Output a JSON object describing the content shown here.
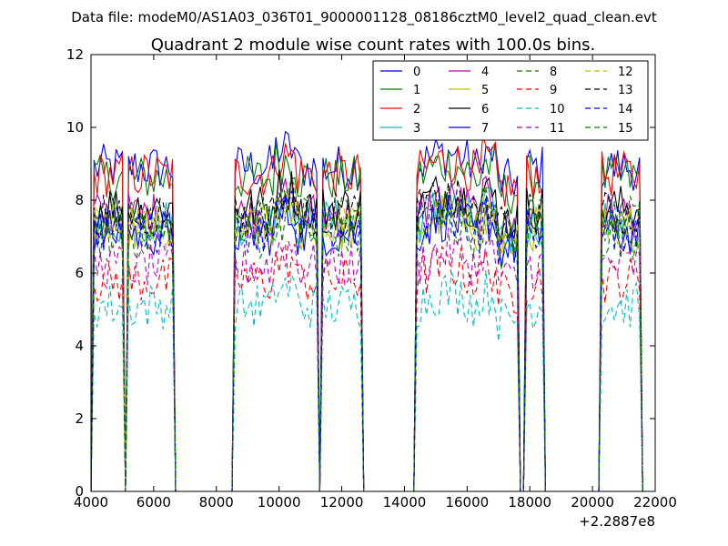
{
  "header": {
    "file_title": "Data file: modeM0/AS1A03_036T01_9000001128_08186cztM0_level2_quad_clean.evt"
  },
  "chart_data": {
    "type": "line",
    "title": "Quadrant 2 module wise count rates with 100.0s bins.",
    "xlabel": "",
    "ylabel": "",
    "x_offset_label": "+2.2887e8",
    "xlim": [
      4000,
      22000
    ],
    "ylim": [
      0,
      12
    ],
    "xticks": [
      "4000",
      "6000",
      "8000",
      "10000",
      "12000",
      "14000",
      "16000",
      "18000",
      "20000",
      "22000"
    ],
    "yticks": [
      "0",
      "2",
      "4",
      "6",
      "8",
      "10",
      "12"
    ],
    "grid": false,
    "legend_position": "top-right",
    "legend_columns": 4,
    "segments": [
      {
        "start": 4100,
        "end": 5000
      },
      {
        "start": 5200,
        "end": 6600
      },
      {
        "start": 8600,
        "end": 11200
      },
      {
        "start": 11400,
        "end": 12600
      },
      {
        "start": 14400,
        "end": 17600
      },
      {
        "start": 17900,
        "end": 18400
      },
      {
        "start": 20300,
        "end": 21500
      }
    ],
    "series": [
      {
        "name": "0",
        "color": "#0000ff",
        "dash": false,
        "level": 8.9
      },
      {
        "name": "1",
        "color": "#008000",
        "dash": false,
        "level": 8.6
      },
      {
        "name": "2",
        "color": "#ff0000",
        "dash": false,
        "level": 8.7
      },
      {
        "name": "3",
        "color": "#00bfbf",
        "dash": false,
        "level": 7.4
      },
      {
        "name": "4",
        "color": "#bf00bf",
        "dash": false,
        "level": 7.6
      },
      {
        "name": "5",
        "color": "#bfbf00",
        "dash": false,
        "level": 7.2
      },
      {
        "name": "6",
        "color": "#000000",
        "dash": false,
        "level": 7.8
      },
      {
        "name": "7",
        "color": "#0000ff",
        "dash": false,
        "level": 7.1
      },
      {
        "name": "8",
        "color": "#008000",
        "dash": true,
        "level": 7.0
      },
      {
        "name": "9",
        "color": "#ff0000",
        "dash": true,
        "level": 5.8
      },
      {
        "name": "10",
        "color": "#00bfbf",
        "dash": true,
        "level": 5.1
      },
      {
        "name": "11",
        "color": "#bf00bf",
        "dash": true,
        "level": 6.2
      },
      {
        "name": "12",
        "color": "#bfbf00",
        "dash": true,
        "level": 7.3
      },
      {
        "name": "13",
        "color": "#000000",
        "dash": true,
        "level": 7.6
      },
      {
        "name": "14",
        "color": "#0000ff",
        "dash": true,
        "level": 7.2
      },
      {
        "name": "15",
        "color": "#008000",
        "dash": true,
        "level": 7.5
      }
    ]
  }
}
